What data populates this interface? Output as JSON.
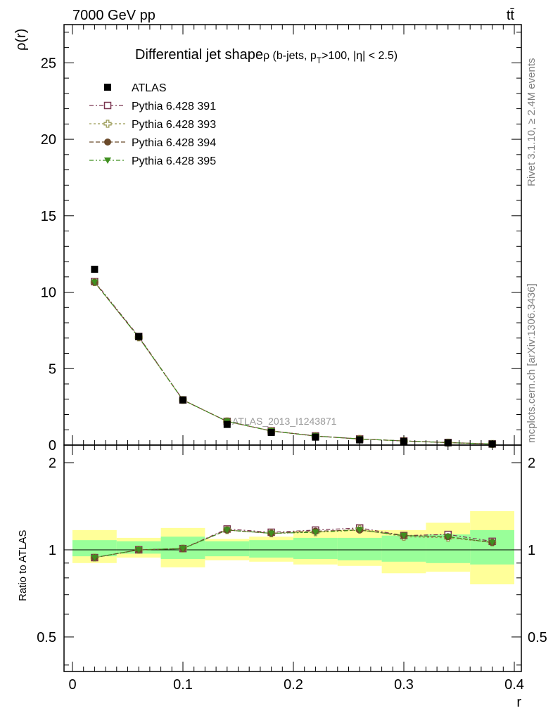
{
  "header": {
    "left": "7000 GeV pp",
    "right": "tt̄"
  },
  "side_labels": {
    "rivet": "Rivet 3.1.10, ≥ 2.4M events",
    "mcplots": "mcplots.cern.ch [arXiv:1306.3436]"
  },
  "chart_data": {
    "type": "line",
    "title": "Differential jet shape",
    "title_sub": "ρ (b-jets, p",
    "title_sub_T": "T",
    "title_sub_rest": ">100, |η| < 2.5)",
    "watermark": "ATLAS_2013_I1243871",
    "xlabel": "r",
    "ylabel": "ρ(r)",
    "ratio_ylabel": "Ratio to ATLAS",
    "xlim": [
      0,
      0.4
    ],
    "ylim": [
      0,
      27.5
    ],
    "ratio_ylim": [
      0.38,
      2.3
    ],
    "x_ticks": [
      "0",
      "0.1",
      "0.2",
      "0.3",
      "0.4"
    ],
    "y_ticks": [
      "0",
      "5",
      "10",
      "15",
      "20",
      "25"
    ],
    "ratio_y_ticks": [
      "0.5",
      "1",
      "2"
    ],
    "x": [
      0.02,
      0.06,
      0.1,
      0.14,
      0.18,
      0.22,
      0.26,
      0.3,
      0.34,
      0.38
    ],
    "x_bin_edges": [
      0.0,
      0.04,
      0.08,
      0.12,
      0.16,
      0.2,
      0.24,
      0.28,
      0.32,
      0.36,
      0.4
    ],
    "data": {
      "name": "ATLAS",
      "values": [
        11.5,
        7.1,
        2.95,
        1.35,
        0.83,
        0.52,
        0.34,
        0.24,
        0.15,
        0.07
      ],
      "ratio_band_inner": [
        [
          0.95,
          1.08
        ],
        [
          0.97,
          1.07
        ],
        [
          0.93,
          1.11
        ],
        [
          0.95,
          1.07
        ],
        [
          0.94,
          1.08
        ],
        [
          0.93,
          1.1
        ],
        [
          0.92,
          1.1
        ],
        [
          0.91,
          1.12
        ],
        [
          0.9,
          1.13
        ],
        [
          0.89,
          1.17
        ]
      ],
      "ratio_band_outer": [
        [
          0.9,
          1.17
        ],
        [
          0.94,
          1.1
        ],
        [
          0.87,
          1.19
        ],
        [
          0.92,
          1.09
        ],
        [
          0.91,
          1.11
        ],
        [
          0.89,
          1.16
        ],
        [
          0.88,
          1.17
        ],
        [
          0.83,
          1.17
        ],
        [
          0.84,
          1.24
        ],
        [
          0.76,
          1.36
        ]
      ]
    },
    "series": [
      {
        "name": "Pythia 6.428 391",
        "color": "#7a3550",
        "marker": "open-square",
        "values": [
          10.7,
          7.1,
          2.95,
          1.55,
          0.93,
          0.6,
          0.4,
          0.27,
          0.17,
          0.075
        ],
        "ratio": [
          0.94,
          1.0,
          1.01,
          1.18,
          1.15,
          1.17,
          1.19,
          1.12,
          1.13,
          1.07
        ]
      },
      {
        "name": "Pythia 6.428 393",
        "color": "#9a9a55",
        "marker": "open-cross",
        "values": [
          10.65,
          7.05,
          2.95,
          1.55,
          0.92,
          0.59,
          0.4,
          0.27,
          0.16,
          0.074
        ],
        "ratio": [
          0.94,
          1.0,
          1.01,
          1.17,
          1.14,
          1.15,
          1.18,
          1.11,
          1.1,
          1.06
        ]
      },
      {
        "name": "Pythia 6.428 394",
        "color": "#6b4a2a",
        "marker": "filled-circle",
        "values": [
          10.65,
          7.05,
          2.95,
          1.55,
          0.92,
          0.59,
          0.4,
          0.27,
          0.16,
          0.074
        ],
        "ratio": [
          0.94,
          1.0,
          1.01,
          1.17,
          1.14,
          1.16,
          1.17,
          1.12,
          1.11,
          1.06
        ]
      },
      {
        "name": "Pythia 6.428 395",
        "color": "#3f8f1f",
        "marker": "filled-triangle",
        "values": [
          10.65,
          7.05,
          2.95,
          1.55,
          0.92,
          0.59,
          0.4,
          0.27,
          0.16,
          0.074
        ],
        "ratio": [
          0.94,
          1.0,
          1.01,
          1.17,
          1.14,
          1.15,
          1.17,
          1.12,
          1.11,
          1.06
        ]
      }
    ],
    "band_colors": {
      "inner": "#99ff99",
      "outer": "#ffff99"
    }
  }
}
